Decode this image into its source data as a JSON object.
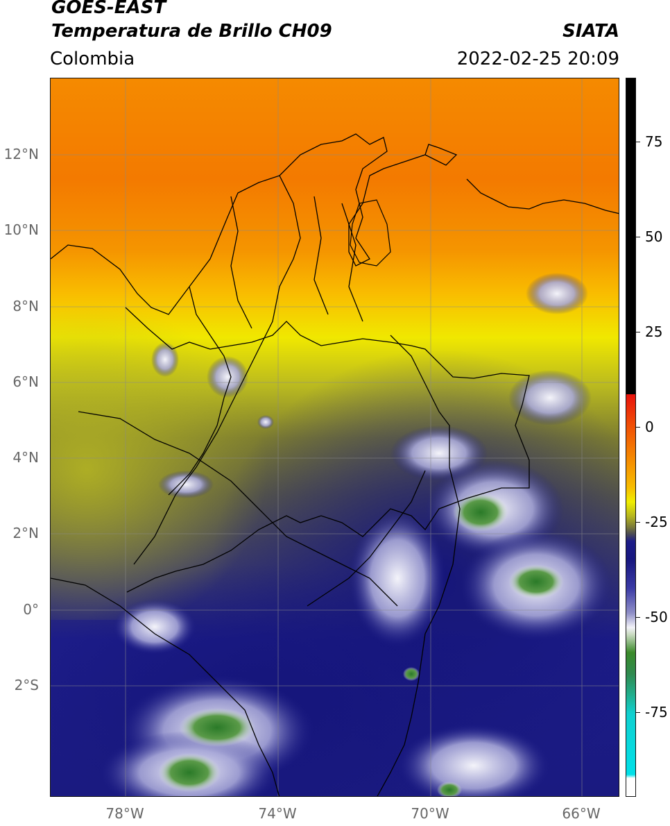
{
  "header": {
    "title_line1": "GOES-EAST",
    "title_line2": "Temperatura de Brillo CH09",
    "region": "Colombia",
    "source": "SIATA",
    "timestamp": "2022-02-25 20:09"
  },
  "map": {
    "lat_labels": [
      "12°N",
      "10°N",
      "8°N",
      "6°N",
      "4°N",
      "2°N",
      "0°",
      "2°S"
    ],
    "lon_labels": [
      "78°W",
      "74°W",
      "70°W",
      "66°W"
    ],
    "extent": {
      "lon_min": -80,
      "lon_max": -65,
      "lat_min": -5,
      "lat_max": 14
    }
  },
  "colorbar": {
    "tick_labels": [
      "75",
      "50",
      "25",
      "0",
      "-25",
      "-50",
      "-75"
    ],
    "colors": {
      "black": "#000000",
      "red": "#e8120c",
      "orange": "#f58a00",
      "yellow": "#f0ee00",
      "olive": "#8a8a2a",
      "gray": "#4a4a55",
      "navy": "#17177f",
      "light": "#f2f2f8",
      "green": "#3a8a2a",
      "teal": "#20c0a0",
      "cyan": "#00e0e8",
      "white": "#ffffff"
    }
  }
}
